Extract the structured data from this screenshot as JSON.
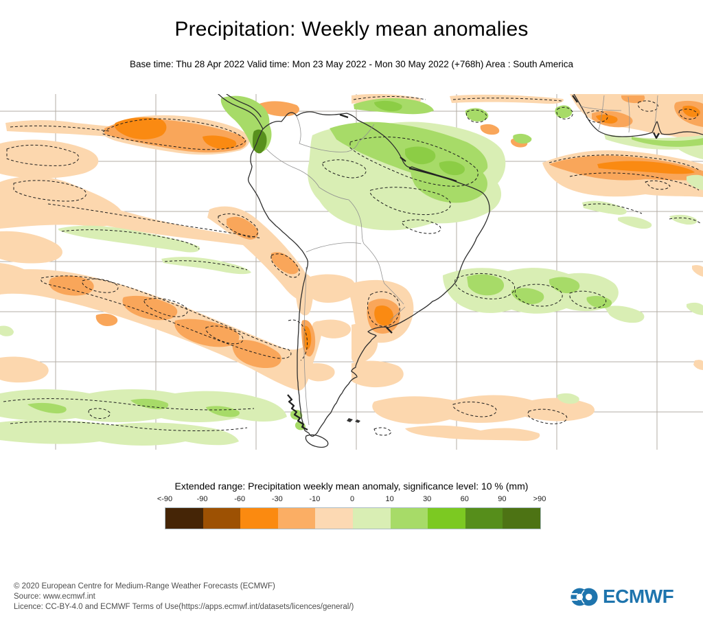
{
  "header": {
    "title": "Precipitation: Weekly mean anomalies",
    "subtitle": "Base time: Thu 28 Apr 2022 Valid time: Mon 23 May 2022 - Mon 30 May 2022 (+768h) Area : South America"
  },
  "map": {
    "area": "South America",
    "palette": {
      "peach": "#fcd7ae",
      "orange": "#f9a65a",
      "strong_orange": "#fa8a12",
      "pale_green": "#d9eeb4",
      "green": "#a7db68",
      "strong_green": "#8ccd45",
      "dark_green": "#58901d"
    },
    "gridline_color": "#b3aca4",
    "coast_color": "#2e2e2e"
  },
  "legend": {
    "title": "Extended range: Precipitation weekly mean anomaly, significance level: 10 % (mm)",
    "ticks": [
      "<-90",
      "-90",
      "-60",
      "-30",
      "-10",
      "0",
      "10",
      "30",
      "60",
      "90",
      ">90"
    ],
    "colors": [
      "#452506",
      "#9d5103",
      "#fb8a10",
      "#fbae64",
      "#fcd9b3",
      "#d9eeb4",
      "#a7db68",
      "#7cc922",
      "#568e1b",
      "#4d7314"
    ]
  },
  "footer": {
    "line1": "© 2020 European Centre for Medium-Range Weather Forecasts (ECMWF)",
    "line2": "Source: www.ecmwf.int",
    "line3": "Licence: CC-BY-4.0 and ECMWF Terms of Use(https://apps.ecmwf.int/datasets/licences/general/)",
    "logo_text": "ECMWF",
    "logo_color": "#1e74ad"
  }
}
